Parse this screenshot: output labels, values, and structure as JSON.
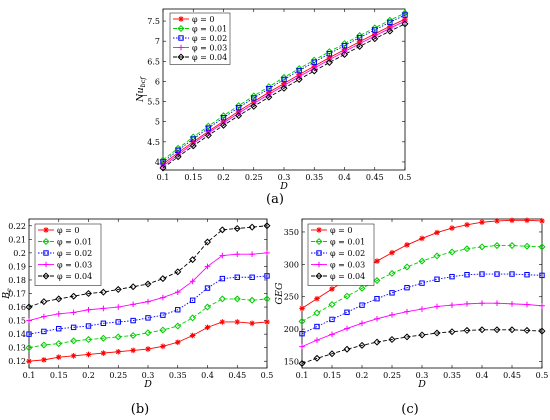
{
  "figure": {
    "captions": [
      "(a)",
      "(b)",
      "(c)"
    ]
  },
  "chart_data": [
    {
      "panel": "(a)",
      "type": "line",
      "xlabel": "D",
      "ylabel": "Nu_bcf",
      "ylabel_display": "Nu",
      "ylabel_sub": "bcf",
      "xlim": [
        0.1,
        0.5
      ],
      "ylim": [
        3.8,
        7.8
      ],
      "xticks": [
        "0.1",
        "0.15",
        "0.2",
        "0.25",
        "0.3",
        "0.35",
        "0.4",
        "0.45",
        "0.5"
      ],
      "yticks": [
        "4",
        "4.5",
        "5",
        "5.5",
        "6",
        "6.5",
        "7",
        "7.5"
      ],
      "grid": false,
      "legend_position": "top-left",
      "x": [
        0.1,
        0.125,
        0.15,
        0.175,
        0.2,
        0.225,
        0.25,
        0.275,
        0.3,
        0.325,
        0.35,
        0.375,
        0.4,
        0.425,
        0.45,
        0.475,
        0.5
      ],
      "series": [
        {
          "name": "φ = 0",
          "color": "#ff0000",
          "marker": "star",
          "dash": "solid",
          "values": [
            3.95,
            4.23,
            4.5,
            4.76,
            5.01,
            5.26,
            5.5,
            5.73,
            5.95,
            6.17,
            6.38,
            6.59,
            6.79,
            6.99,
            7.18,
            7.37,
            7.55
          ]
        },
        {
          "name": "φ = 0.01",
          "color": "#00cc00",
          "marker": "diamond",
          "dash": "dashed",
          "values": [
            4.05,
            4.34,
            4.62,
            4.89,
            5.15,
            5.4,
            5.64,
            5.87,
            6.1,
            6.32,
            6.53,
            6.74,
            6.94,
            7.14,
            7.33,
            7.52,
            7.7
          ]
        },
        {
          "name": "φ = 0.02",
          "color": "#0000ff",
          "marker": "square",
          "dash": "dotted",
          "values": [
            4.0,
            4.29,
            4.57,
            4.84,
            5.1,
            5.35,
            5.59,
            5.82,
            6.05,
            6.27,
            6.48,
            6.69,
            6.89,
            7.09,
            7.28,
            7.47,
            7.65
          ]
        },
        {
          "name": "φ = 0.03",
          "color": "#ff00ff",
          "marker": "plus",
          "dash": "solid",
          "values": [
            3.9,
            4.18,
            4.46,
            4.72,
            4.97,
            5.21,
            5.45,
            5.68,
            5.9,
            6.12,
            6.33,
            6.54,
            6.74,
            6.94,
            7.13,
            7.32,
            7.5
          ]
        },
        {
          "name": "φ = 0.04",
          "color": "#000000",
          "marker": "diamond",
          "dash": "dashed",
          "values": [
            3.85,
            4.13,
            4.4,
            4.66,
            4.91,
            5.15,
            5.38,
            5.61,
            5.83,
            6.05,
            6.26,
            6.47,
            6.67,
            6.87,
            7.06,
            7.25,
            7.43
          ]
        }
      ]
    },
    {
      "panel": "(b)",
      "type": "line",
      "xlabel": "D",
      "ylabel": "B_e",
      "ylabel_display": "B",
      "ylabel_sub": "e",
      "xlim": [
        0.1,
        0.5
      ],
      "ylim": [
        0.115,
        0.225
      ],
      "xticks": [
        "0.1",
        "0.15",
        "0.2",
        "0.25",
        "0.3",
        "0.35",
        "0.4",
        "0.45",
        "0.5"
      ],
      "yticks": [
        "0.12",
        "0.13",
        "0.14",
        "0.15",
        "0.16",
        "0.17",
        "0.18",
        "0.19",
        "0.2",
        "0.21",
        "0.22"
      ],
      "grid": false,
      "legend_position": "top-left",
      "x": [
        0.1,
        0.125,
        0.15,
        0.175,
        0.2,
        0.225,
        0.25,
        0.275,
        0.3,
        0.325,
        0.35,
        0.375,
        0.4,
        0.425,
        0.45,
        0.475,
        0.5
      ],
      "series": [
        {
          "name": "φ = 0",
          "color": "#ff0000",
          "marker": "star",
          "dash": "solid",
          "values": [
            0.12,
            0.121,
            0.123,
            0.124,
            0.125,
            0.126,
            0.127,
            0.128,
            0.129,
            0.131,
            0.134,
            0.139,
            0.145,
            0.149,
            0.149,
            0.148,
            0.149
          ]
        },
        {
          "name": "φ = 0.01",
          "color": "#00cc00",
          "marker": "diamond",
          "dash": "dashed",
          "values": [
            0.13,
            0.132,
            0.133,
            0.135,
            0.136,
            0.137,
            0.138,
            0.139,
            0.141,
            0.143,
            0.146,
            0.152,
            0.16,
            0.166,
            0.166,
            0.165,
            0.166
          ]
        },
        {
          "name": "φ = 0.02",
          "color": "#0000ff",
          "marker": "square",
          "dash": "dotted",
          "values": [
            0.14,
            0.142,
            0.144,
            0.145,
            0.146,
            0.148,
            0.149,
            0.15,
            0.152,
            0.154,
            0.158,
            0.165,
            0.174,
            0.181,
            0.182,
            0.182,
            0.183
          ]
        },
        {
          "name": "φ = 0.03",
          "color": "#ff00ff",
          "marker": "plus",
          "dash": "solid",
          "values": [
            0.15,
            0.153,
            0.155,
            0.156,
            0.158,
            0.159,
            0.16,
            0.162,
            0.164,
            0.167,
            0.171,
            0.179,
            0.19,
            0.198,
            0.199,
            0.199,
            0.2
          ]
        },
        {
          "name": "φ = 0.04",
          "color": "#000000",
          "marker": "diamond",
          "dash": "dashed",
          "values": [
            0.16,
            0.164,
            0.166,
            0.168,
            0.17,
            0.171,
            0.173,
            0.175,
            0.177,
            0.181,
            0.186,
            0.195,
            0.208,
            0.217,
            0.218,
            0.219,
            0.22
          ]
        }
      ]
    },
    {
      "panel": "(c)",
      "type": "line",
      "xlabel": "D",
      "ylabel": "GEG",
      "xlim": [
        0.1,
        0.5
      ],
      "ylim": [
        140,
        370
      ],
      "xticks": [
        "0.1",
        "0.15",
        "0.2",
        "0.25",
        "0.3",
        "0.35",
        "0.4",
        "0.45",
        "0.5"
      ],
      "yticks": [
        "150",
        "200",
        "250",
        "300",
        "350"
      ],
      "grid": false,
      "legend_position": "top-left",
      "x": [
        0.1,
        0.125,
        0.15,
        0.175,
        0.2,
        0.225,
        0.25,
        0.275,
        0.3,
        0.325,
        0.35,
        0.375,
        0.4,
        0.425,
        0.45,
        0.475,
        0.5
      ],
      "series": [
        {
          "name": "φ = 0",
          "color": "#ff0000",
          "marker": "star",
          "dash": "solid",
          "values": [
            232,
            247,
            262,
            277,
            291,
            305,
            318,
            330,
            340,
            349,
            356,
            361,
            365,
            367,
            368,
            368,
            367
          ]
        },
        {
          "name": "φ = 0.01",
          "color": "#00cc00",
          "marker": "diamond",
          "dash": "dashed",
          "values": [
            212,
            225,
            238,
            251,
            263,
            275,
            286,
            296,
            305,
            313,
            319,
            324,
            327,
            329,
            329,
            328,
            327
          ]
        },
        {
          "name": "φ = 0.02",
          "color": "#0000ff",
          "marker": "square",
          "dash": "dotted",
          "values": [
            193,
            204,
            215,
            226,
            237,
            247,
            256,
            264,
            271,
            277,
            281,
            284,
            285,
            285,
            285,
            284,
            283
          ]
        },
        {
          "name": "φ = 0.03",
          "color": "#ff00ff",
          "marker": "plus",
          "dash": "solid",
          "values": [
            173,
            183,
            192,
            201,
            209,
            216,
            222,
            227,
            231,
            235,
            237,
            239,
            240,
            240,
            239,
            238,
            236
          ]
        },
        {
          "name": "φ = 0.04",
          "color": "#000000",
          "marker": "diamond",
          "dash": "dashed",
          "values": [
            147,
            155,
            162,
            169,
            175,
            180,
            184,
            188,
            191,
            194,
            196,
            198,
            199,
            199,
            199,
            198,
            197
          ]
        }
      ]
    }
  ]
}
